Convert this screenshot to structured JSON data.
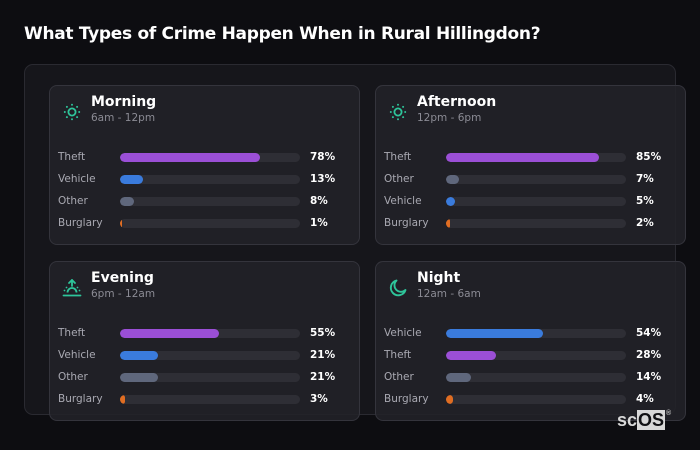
{
  "header": {
    "title": "What Types of Crime Happen When in Rural Hillingdon?"
  },
  "colors": {
    "background": "#0d0d11",
    "panel": "#16161b",
    "card": "#222228",
    "track": "#2e2e35",
    "accent_icon": "#2ec59a",
    "theft": "#9b4fd6",
    "vehicle": "#3a7bdc",
    "other": "#5f677c",
    "burglary": "#e06d22"
  },
  "cards": [
    {
      "name": "Morning",
      "range": "6am - 12pm",
      "icon": "sun-icon",
      "rows": [
        {
          "label": "Theft",
          "value": 78,
          "pct": "78%",
          "color": "#9b4fd6"
        },
        {
          "label": "Vehicle",
          "value": 13,
          "pct": "13%",
          "color": "#3a7bdc"
        },
        {
          "label": "Other",
          "value": 8,
          "pct": "8%",
          "color": "#5f677c"
        },
        {
          "label": "Burglary",
          "value": 1,
          "pct": "1%",
          "color": "#e06d22"
        }
      ]
    },
    {
      "name": "Afternoon",
      "range": "12pm - 6pm",
      "icon": "sun-icon",
      "rows": [
        {
          "label": "Theft",
          "value": 85,
          "pct": "85%",
          "color": "#9b4fd6"
        },
        {
          "label": "Other",
          "value": 7,
          "pct": "7%",
          "color": "#5f677c"
        },
        {
          "label": "Vehicle",
          "value": 5,
          "pct": "5%",
          "color": "#3a7bdc"
        },
        {
          "label": "Burglary",
          "value": 2,
          "pct": "2%",
          "color": "#e06d22"
        }
      ]
    },
    {
      "name": "Evening",
      "range": "6pm - 12am",
      "icon": "sunset-icon",
      "rows": [
        {
          "label": "Theft",
          "value": 55,
          "pct": "55%",
          "color": "#9b4fd6"
        },
        {
          "label": "Vehicle",
          "value": 21,
          "pct": "21%",
          "color": "#3a7bdc"
        },
        {
          "label": "Other",
          "value": 21,
          "pct": "21%",
          "color": "#5f677c"
        },
        {
          "label": "Burglary",
          "value": 3,
          "pct": "3%",
          "color": "#e06d22"
        }
      ]
    },
    {
      "name": "Night",
      "range": "12am - 6am",
      "icon": "moon-icon",
      "rows": [
        {
          "label": "Vehicle",
          "value": 54,
          "pct": "54%",
          "color": "#3a7bdc"
        },
        {
          "label": "Theft",
          "value": 28,
          "pct": "28%",
          "color": "#9b4fd6"
        },
        {
          "label": "Other",
          "value": 14,
          "pct": "14%",
          "color": "#5f677c"
        },
        {
          "label": "Burglary",
          "value": 4,
          "pct": "4%",
          "color": "#e06d22"
        }
      ]
    }
  ],
  "logo": {
    "sc": "sc",
    "os": "OS",
    "reg": "®"
  },
  "chart_data": [
    {
      "type": "bar",
      "orientation": "horizontal",
      "title": "Morning",
      "subtitle": "6am - 12pm",
      "categories": [
        "Theft",
        "Vehicle",
        "Other",
        "Burglary"
      ],
      "values": [
        78,
        13,
        8,
        1
      ],
      "unit": "%",
      "xlim": [
        0,
        100
      ]
    },
    {
      "type": "bar",
      "orientation": "horizontal",
      "title": "Afternoon",
      "subtitle": "12pm - 6pm",
      "categories": [
        "Theft",
        "Other",
        "Vehicle",
        "Burglary"
      ],
      "values": [
        85,
        7,
        5,
        2
      ],
      "unit": "%",
      "xlim": [
        0,
        100
      ]
    },
    {
      "type": "bar",
      "orientation": "horizontal",
      "title": "Evening",
      "subtitle": "6pm - 12am",
      "categories": [
        "Theft",
        "Vehicle",
        "Other",
        "Burglary"
      ],
      "values": [
        55,
        21,
        21,
        3
      ],
      "unit": "%",
      "xlim": [
        0,
        100
      ]
    },
    {
      "type": "bar",
      "orientation": "horizontal",
      "title": "Night",
      "subtitle": "12am - 6am",
      "categories": [
        "Vehicle",
        "Theft",
        "Other",
        "Burglary"
      ],
      "values": [
        54,
        28,
        14,
        4
      ],
      "unit": "%",
      "xlim": [
        0,
        100
      ]
    }
  ]
}
